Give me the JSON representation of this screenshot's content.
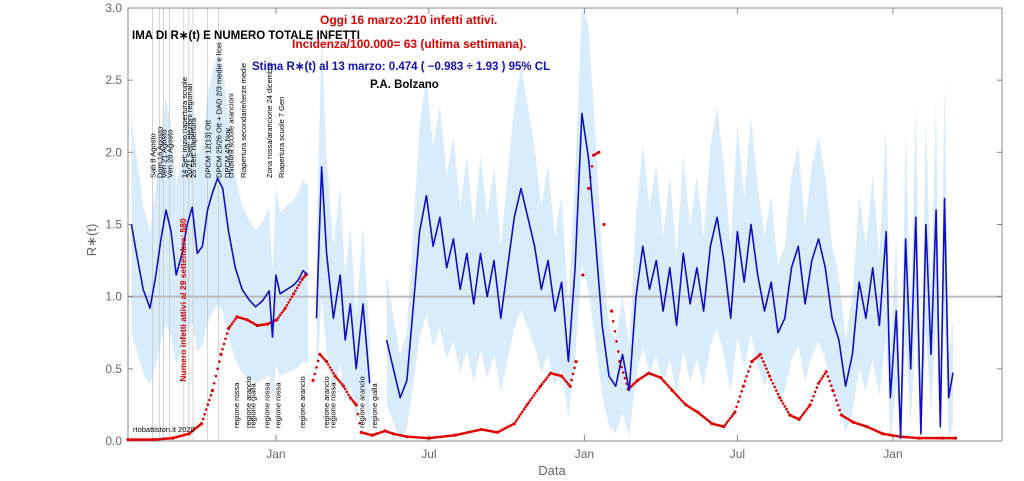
{
  "chart_data": {
    "type": "line",
    "title": "STIMA DI R∗(t) E NUMERO TOTALE INFETTI",
    "title_visible": "IMA DI R∗(t) E NUMERO TOTALE INFETTI",
    "headline": "Oggi 16 marzo:210 infetti attivi.",
    "incidence": "Incidenza/100.000= 63 (ultima settimana).",
    "estimate": "Stima R∗(t) al 13 marzo: 0.474 ( −0.983 ÷ 1.93 ) 95% CL",
    "region": "P.A. Bolzano",
    "watermark": "rtobattiston.it 2020",
    "xlabel": "Data",
    "ylabel": "R∗(t)",
    "ylim": [
      0,
      3
    ],
    "yticks": [
      "0.0",
      "0.5",
      "1.0",
      "1.5",
      "2.0",
      "2.5",
      "3.0"
    ],
    "xticks": [
      {
        "label": "Jan",
        "date": "2021-01-01"
      },
      {
        "label": "Jul",
        "date": "2021-07-01"
      },
      {
        "label": "Jan",
        "date": "2022-01-01"
      },
      {
        "label": "Jul",
        "date": "2022-07-01"
      },
      {
        "label": "Jan",
        "date": "2023-01-01"
      }
    ],
    "xrange": [
      "2020-07-10",
      "2023-05-10"
    ],
    "reference_line": 1.0,
    "series": [
      {
        "name": "Stima R∗(t)",
        "color": "#1010c0",
        "band_color": "#d8ecfb",
        "points": [
          [
            "2020-07-14",
            1.5
          ],
          [
            "2020-07-20",
            1.3
          ],
          [
            "2020-07-28",
            1.05
          ],
          [
            "2020-08-05",
            0.92
          ],
          [
            "2020-08-12",
            1.15
          ],
          [
            "2020-08-18",
            1.4
          ],
          [
            "2020-08-24",
            1.6
          ],
          [
            "2020-08-30",
            1.45
          ],
          [
            "2020-09-05",
            1.15
          ],
          [
            "2020-09-12",
            1.3
          ],
          [
            "2020-09-18",
            1.5
          ],
          [
            "2020-09-24",
            1.62
          ],
          [
            "2020-09-30",
            1.3
          ],
          [
            "2020-10-06",
            1.35
          ],
          [
            "2020-10-12",
            1.6
          ],
          [
            "2020-10-18",
            1.72
          ],
          [
            "2020-10-24",
            1.82
          ],
          [
            "2020-10-30",
            1.75
          ],
          [
            "2020-11-06",
            1.45
          ],
          [
            "2020-11-14",
            1.2
          ],
          [
            "2020-11-22",
            1.05
          ],
          [
            "2020-11-30",
            0.98
          ],
          [
            "2020-12-08",
            0.93
          ],
          [
            "2020-12-16",
            0.97
          ],
          [
            "2020-12-24",
            1.04
          ],
          [
            "2020-12-28",
            0.72
          ],
          [
            "2021-01-01",
            1.15
          ],
          [
            "2021-01-06",
            1.02
          ],
          [
            "2021-01-14",
            1.05
          ],
          [
            "2021-01-22",
            1.08
          ],
          [
            "2021-01-28",
            1.12
          ],
          [
            "2021-02-02",
            1.18
          ],
          [
            "2021-02-08",
            1.15
          ],
          [
            "2021-02-18",
            0.85
          ],
          [
            "2021-02-24",
            1.9
          ],
          [
            "2021-03-02",
            1.3
          ],
          [
            "2021-03-10",
            0.85
          ],
          [
            "2021-03-18",
            1.15
          ],
          [
            "2021-03-24",
            0.7
          ],
          [
            "2021-03-30",
            0.95
          ],
          [
            "2021-04-06",
            0.5
          ],
          [
            "2021-04-14",
            0.95
          ],
          [
            "2021-04-22",
            0.4
          ],
          [
            "2021-05-12",
            0.7
          ],
          [
            "2021-05-20",
            0.5
          ],
          [
            "2021-05-28",
            0.3
          ],
          [
            "2021-06-05",
            0.42
          ],
          [
            "2021-06-12",
            0.9
          ],
          [
            "2021-06-20",
            1.45
          ],
          [
            "2021-06-28",
            1.7
          ],
          [
            "2021-07-06",
            1.35
          ],
          [
            "2021-07-14",
            1.55
          ],
          [
            "2021-07-22",
            1.2
          ],
          [
            "2021-07-30",
            1.4
          ],
          [
            "2021-08-07",
            1.05
          ],
          [
            "2021-08-15",
            1.3
          ],
          [
            "2021-08-23",
            0.95
          ],
          [
            "2021-08-31",
            1.3
          ],
          [
            "2021-09-08",
            1.0
          ],
          [
            "2021-09-16",
            1.25
          ],
          [
            "2021-09-24",
            0.85
          ],
          [
            "2021-10-02",
            1.2
          ],
          [
            "2021-10-10",
            1.55
          ],
          [
            "2021-10-18",
            1.75
          ],
          [
            "2021-10-26",
            1.55
          ],
          [
            "2021-11-03",
            1.35
          ],
          [
            "2021-11-11",
            1.05
          ],
          [
            "2021-11-19",
            1.25
          ],
          [
            "2021-11-27",
            0.9
          ],
          [
            "2021-12-05",
            1.1
          ],
          [
            "2021-12-13",
            0.55
          ],
          [
            "2021-12-21",
            1.2
          ],
          [
            "2021-12-29",
            2.27
          ],
          [
            "2022-01-06",
            1.95
          ],
          [
            "2022-01-14",
            1.4
          ],
          [
            "2022-01-22",
            0.8
          ],
          [
            "2022-01-30",
            0.45
          ],
          [
            "2022-02-07",
            0.38
          ],
          [
            "2022-02-15",
            0.6
          ],
          [
            "2022-02-23",
            0.35
          ],
          [
            "2022-03-03",
            1.0
          ],
          [
            "2022-03-11",
            1.35
          ],
          [
            "2022-03-19",
            1.05
          ],
          [
            "2022-03-27",
            1.25
          ],
          [
            "2022-04-04",
            0.9
          ],
          [
            "2022-04-12",
            1.2
          ],
          [
            "2022-04-20",
            0.8
          ],
          [
            "2022-04-28",
            1.3
          ],
          [
            "2022-05-06",
            0.95
          ],
          [
            "2022-05-14",
            1.2
          ],
          [
            "2022-05-22",
            0.9
          ],
          [
            "2022-05-30",
            1.35
          ],
          [
            "2022-06-07",
            1.55
          ],
          [
            "2022-06-15",
            1.25
          ],
          [
            "2022-06-23",
            0.85
          ],
          [
            "2022-07-01",
            1.45
          ],
          [
            "2022-07-09",
            1.1
          ],
          [
            "2022-07-17",
            1.5
          ],
          [
            "2022-07-25",
            1.15
          ],
          [
            "2022-08-02",
            0.9
          ],
          [
            "2022-08-10",
            1.1
          ],
          [
            "2022-08-18",
            0.75
          ],
          [
            "2022-08-26",
            0.85
          ],
          [
            "2022-09-03",
            1.2
          ],
          [
            "2022-09-11",
            1.35
          ],
          [
            "2022-09-19",
            0.95
          ],
          [
            "2022-09-27",
            1.25
          ],
          [
            "2022-10-05",
            1.4
          ],
          [
            "2022-10-13",
            1.2
          ],
          [
            "2022-10-21",
            0.85
          ],
          [
            "2022-10-29",
            0.7
          ],
          [
            "2022-11-06",
            0.38
          ],
          [
            "2022-11-14",
            0.6
          ],
          [
            "2022-11-22",
            1.1
          ],
          [
            "2022-11-30",
            0.85
          ],
          [
            "2022-12-08",
            1.2
          ],
          [
            "2022-12-16",
            0.8
          ],
          [
            "2022-12-24",
            1.45
          ],
          [
            "2022-12-29",
            0.3
          ],
          [
            "2023-01-05",
            0.9
          ],
          [
            "2023-01-10",
            0.02
          ],
          [
            "2023-01-16",
            1.4
          ],
          [
            "2023-01-22",
            0.5
          ],
          [
            "2023-01-28",
            1.55
          ],
          [
            "2023-02-03",
            0.05
          ],
          [
            "2023-02-09",
            1.5
          ],
          [
            "2023-02-15",
            0.6
          ],
          [
            "2023-02-21",
            1.6
          ],
          [
            "2023-02-26",
            0.1
          ],
          [
            "2023-03-03",
            1.68
          ],
          [
            "2023-03-08",
            0.3
          ],
          [
            "2023-03-13",
            0.474
          ]
        ]
      },
      {
        "name": "Numero infetti attivi al 29 settembre: 580",
        "color": "#e00000",
        "style": "dots",
        "points": [
          [
            "2020-07-10",
            0.01
          ],
          [
            "2020-08-10",
            0.01
          ],
          [
            "2020-09-01",
            0.02
          ],
          [
            "2020-09-20",
            0.05
          ],
          [
            "2020-10-05",
            0.12
          ],
          [
            "2020-10-18",
            0.35
          ],
          [
            "2020-10-28",
            0.6
          ],
          [
            "2020-11-06",
            0.78
          ],
          [
            "2020-11-16",
            0.86
          ],
          [
            "2020-11-28",
            0.84
          ],
          [
            "2020-12-10",
            0.8
          ],
          [
            "2020-12-22",
            0.81
          ],
          [
            "2021-01-02",
            0.84
          ],
          [
            "2021-01-12",
            0.92
          ],
          [
            "2021-01-22",
            1.02
          ],
          [
            "2021-02-01",
            1.12
          ],
          [
            "2021-02-05",
            1.15
          ],
          [
            "2021-02-14",
            0.42
          ],
          [
            "2021-02-22",
            0.6
          ],
          [
            "2021-03-02",
            0.55
          ],
          [
            "2021-03-12",
            0.45
          ],
          [
            "2021-03-22",
            0.38
          ],
          [
            "2021-03-30",
            0.3
          ],
          [
            "2021-04-06",
            0.25
          ],
          [
            "2021-04-12",
            0.06
          ],
          [
            "2021-04-25",
            0.04
          ],
          [
            "2021-05-10",
            0.07
          ],
          [
            "2021-05-20",
            0.05
          ],
          [
            "2021-06-05",
            0.03
          ],
          [
            "2021-07-01",
            0.02
          ],
          [
            "2021-08-01",
            0.04
          ],
          [
            "2021-09-01",
            0.08
          ],
          [
            "2021-09-20",
            0.06
          ],
          [
            "2021-10-10",
            0.12
          ],
          [
            "2021-10-25",
            0.25
          ],
          [
            "2021-11-10",
            0.38
          ],
          [
            "2021-11-22",
            0.47
          ],
          [
            "2021-12-05",
            0.45
          ],
          [
            "2021-12-15",
            0.38
          ],
          [
            "2021-12-22",
            0.55
          ],
          [
            "2021-12-30",
            1.15
          ],
          [
            "2022-01-06",
            1.75
          ],
          [
            "2022-01-12",
            1.98
          ],
          [
            "2022-01-18",
            2.0
          ],
          [
            "2022-01-24",
            1.5
          ],
          [
            "2022-02-02",
            0.9
          ],
          [
            "2022-02-12",
            0.55
          ],
          [
            "2022-02-22",
            0.36
          ],
          [
            "2022-03-05",
            0.42
          ],
          [
            "2022-03-18",
            0.47
          ],
          [
            "2022-04-01",
            0.44
          ],
          [
            "2022-04-15",
            0.35
          ],
          [
            "2022-05-01",
            0.25
          ],
          [
            "2022-05-15",
            0.2
          ],
          [
            "2022-06-01",
            0.12
          ],
          [
            "2022-06-15",
            0.1
          ],
          [
            "2022-06-28",
            0.2
          ],
          [
            "2022-07-08",
            0.38
          ],
          [
            "2022-07-18",
            0.55
          ],
          [
            "2022-07-28",
            0.6
          ],
          [
            "2022-08-08",
            0.45
          ],
          [
            "2022-08-20",
            0.3
          ],
          [
            "2022-09-01",
            0.18
          ],
          [
            "2022-09-12",
            0.15
          ],
          [
            "2022-09-25",
            0.25
          ],
          [
            "2022-10-05",
            0.4
          ],
          [
            "2022-10-14",
            0.48
          ],
          [
            "2022-10-22",
            0.35
          ],
          [
            "2022-11-01",
            0.18
          ],
          [
            "2022-11-15",
            0.13
          ],
          [
            "2022-12-01",
            0.1
          ],
          [
            "2022-12-20",
            0.05
          ],
          [
            "2023-01-10",
            0.03
          ],
          [
            "2023-02-01",
            0.02
          ],
          [
            "2023-03-01",
            0.02
          ],
          [
            "2023-03-16",
            0.02
          ]
        ]
      }
    ],
    "event_labels": [
      {
        "text": "Sab 8 Agosto",
        "date": "2020-08-08"
      },
      {
        "text": "Dom 16 Agosto",
        "date": "2020-08-16"
      },
      {
        "text": "Ven 21 Agosto",
        "date": "2020-08-21"
      },
      {
        "text": "Ven 28 Agosto",
        "date": "2020-08-28"
      },
      {
        "text": "14 Set: inizio riapertura scuole",
        "date": "2020-09-14"
      },
      {
        "text": "20/21 Sett: elezioni regionali",
        "date": "2020-09-20"
      },
      {
        "text": "25 Sett: riapertura",
        "date": "2020-09-25"
      },
      {
        "text": "DPCM 12(13) Ott",
        "date": "2020-10-12"
      },
      {
        "text": "DPCM 25/26 Ott + DAD 2/3 medie e licei",
        "date": "2020-10-25"
      },
      {
        "text": "DPCM 4/5 Nov",
        "date": "2020-11-04"
      },
      {
        "text": "chiusura scuole arancioni",
        "date": "2020-11-08"
      },
      {
        "text": "Riapertura secondarie/terze medie",
        "date": "2020-11-23"
      },
      {
        "text": "Zona rossa/arancione 24 dicembre",
        "date": "2020-12-24"
      },
      {
        "text": "Riapertura scuole 7 Gen",
        "date": "2021-01-07"
      }
    ],
    "region_labels": [
      {
        "text": "regione rossa",
        "date": "2020-11-15"
      },
      {
        "text": "regione arancio",
        "date": "2020-11-29"
      },
      {
        "text": "regione gialla",
        "date": "2020-12-04"
      },
      {
        "text": "regione rossa",
        "date": "2020-12-21"
      },
      {
        "text": "regione rossa",
        "date": "2021-01-03"
      },
      {
        "text": "regione arancio",
        "date": "2021-02-01"
      },
      {
        "text": "regione arancio",
        "date": "2021-03-01"
      },
      {
        "text": "regione rossa",
        "date": "2021-03-09"
      },
      {
        "text": "regione arancio",
        "date": "2021-04-12"
      },
      {
        "text": "regione gialla",
        "date": "2021-04-27"
      }
    ]
  }
}
